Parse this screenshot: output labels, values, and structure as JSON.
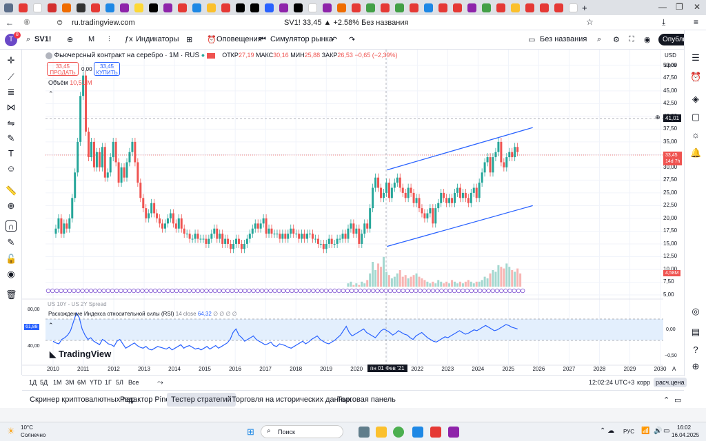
{
  "browser": {
    "url": "ru.tradingview.com",
    "page_title": "SV1! 33,45 ▲ +2.58% Без названия",
    "tab_badge": "8"
  },
  "toolbar": {
    "symbol": "SV1!",
    "interval": "М",
    "indicators": "Индикаторы",
    "alerts": "Оповещения",
    "replay": "Симулятор рынка",
    "layout_name": "Без названия",
    "publish": "Опубликовать",
    "avatar": "T",
    "avatar_badge": "8"
  },
  "legend": {
    "title": "Фьючерсный контракт на серебро · 1М · RUS",
    "ohlc_o_label": "ОТКР",
    "ohlc_o": "27,19",
    "ohlc_h_label": "МАКС",
    "ohlc_h": "30,16",
    "ohlc_l_label": "МИН",
    "ohlc_l": "25,88",
    "ohlc_c_label": "ЗАКР",
    "ohlc_c": "26,53",
    "change": "−0,65 (−2,39%)",
    "sell_price": "33,45",
    "sell_label": "ПРОДАТЬ",
    "spread": "0,00",
    "buy_price": "33,45",
    "buy_label": "КУПИТЬ",
    "volume_label": "Объём",
    "volume_value": "10,51 M",
    "spread_overlay": "US 10Y - US 2Y Spread"
  },
  "rsi": {
    "label": "Расхождение Индекса относительной силы (RSI)",
    "params": "14 close",
    "value": "64,32",
    "dots": "∅ ∅ ∅ ∅",
    "marker": "61,88",
    "left_80": "80,00",
    "left_40": "40,00",
    "right_top": "0,00",
    "right_bot": "−0,50",
    "logo": "TradingView"
  },
  "price_axis": {
    "currency": "USD",
    "unit": "ароз",
    "ticks": [
      "50,00",
      "47,50",
      "45,00",
      "42,50",
      "40,00",
      "37,50",
      "35,00",
      "32,50",
      "30,00",
      "27,50",
      "25,00",
      "22,50",
      "20,00",
      "17,50",
      "15,00",
      "12,50",
      "10,00",
      "7,50",
      "5,00"
    ],
    "crosshair": "41,01",
    "last_price": "33,45",
    "countdown": "14d 7h",
    "volume_badge": "4,58M"
  },
  "time_axis": {
    "years": [
      "2010",
      "2011",
      "2012",
      "2013",
      "2014",
      "2015",
      "2016",
      "2017",
      "2018",
      "2019",
      "2020",
      "2022",
      "2023",
      "2024",
      "2025",
      "2026",
      "2027",
      "2028",
      "2029",
      "2030"
    ],
    "crosshair": "пн 01 Фев '21",
    "auto": "A"
  },
  "bottom": {
    "ranges": [
      "1Д",
      "5Д",
      "1М",
      "3М",
      "6М",
      "YTD",
      "1Г",
      "5Л",
      "Все"
    ],
    "time": "12:02:24 UTC+3",
    "corr": "корр",
    "settle": "расч.цена"
  },
  "panels": [
    "Скринер криптовалютных пар",
    "Редактор Pine",
    "Тестер стратегий",
    "Торговля на исторических данных",
    "Торговая панель"
  ],
  "taskbar": {
    "weather_temp": "10°C",
    "weather_desc": "Солнечно",
    "search": "Поиск",
    "lang": "РУС",
    "time": "16:02",
    "date": "16.04.2025"
  },
  "colors": {
    "up": "#26a69a",
    "down": "#ef5350",
    "channel": "#2962ff",
    "rsi": "#2962ff",
    "rsi_band": "#e3effd"
  },
  "chart_data": {
    "type": "candlestick",
    "title": "Фьючерсный контракт на серебро · 1М · RUS",
    "ylim": [
      5,
      52
    ],
    "price_track": [
      17,
      18,
      20,
      17,
      19,
      18,
      20,
      24,
      29,
      35,
      44,
      48,
      37,
      32,
      35,
      30,
      33,
      30,
      34,
      28,
      29,
      32,
      35,
      31,
      27,
      30,
      28,
      31,
      33,
      35,
      31,
      27,
      24,
      22,
      20,
      21,
      23,
      21,
      20,
      19,
      18,
      19,
      20,
      21,
      19,
      18,
      20,
      18,
      17,
      17,
      16,
      16,
      17,
      16,
      16,
      16,
      15,
      16,
      17,
      18,
      16,
      17,
      15,
      16,
      15,
      14,
      15,
      16,
      15,
      14,
      15,
      16,
      17,
      18,
      19,
      18,
      19,
      20,
      17,
      18,
      17,
      17,
      17,
      16,
      17,
      16,
      17,
      18,
      17,
      17,
      16,
      17,
      16,
      17,
      17,
      16,
      16,
      15,
      15,
      14,
      15,
      16,
      15,
      15,
      16,
      16,
      17,
      16,
      18,
      19,
      17,
      18,
      15,
      17,
      19,
      18,
      22,
      26,
      28,
      26,
      24,
      25,
      27,
      24,
      26,
      27,
      28,
      26,
      25,
      24,
      26,
      25,
      23,
      24,
      22,
      21,
      20,
      21,
      22,
      19,
      22,
      23,
      25,
      24,
      23,
      24,
      23,
      25,
      26,
      24,
      25,
      24,
      23,
      25,
      26,
      24,
      27,
      29,
      31,
      32,
      29,
      32,
      33,
      35,
      31,
      30,
      32,
      33,
      32,
      34,
      33
    ],
    "volume_track": [
      0,
      0,
      0,
      0,
      0,
      0,
      0,
      0,
      0,
      0,
      0,
      0,
      0,
      0,
      0,
      0,
      0,
      0,
      0,
      0,
      0,
      0,
      0,
      0,
      0,
      0,
      0,
      0,
      0,
      0,
      0,
      0,
      0,
      0,
      0,
      0,
      0,
      0,
      0,
      0,
      0,
      0,
      0,
      0,
      0,
      0,
      0,
      0,
      0,
      0,
      0,
      0,
      0,
      0,
      0,
      0,
      0,
      0,
      0,
      0,
      0,
      0,
      0,
      0,
      0,
      0,
      0,
      0,
      0,
      0,
      0,
      0,
      0,
      0,
      0,
      0,
      0,
      0,
      0,
      0,
      0,
      0,
      0,
      0,
      0,
      0,
      0,
      0,
      0,
      0,
      0,
      0,
      0,
      0,
      0,
      0,
      0,
      0,
      0,
      0,
      0,
      0,
      0,
      0,
      0,
      0,
      0,
      0,
      2,
      3,
      1,
      2,
      1,
      3,
      2,
      4,
      8,
      15,
      10,
      14,
      12,
      18,
      9,
      7,
      5,
      6,
      8,
      10,
      6,
      7,
      5,
      6,
      7,
      8,
      6,
      5,
      4,
      3,
      2,
      3,
      2,
      4,
      3,
      2,
      3,
      2,
      4,
      3,
      2,
      3,
      2,
      3,
      4,
      3,
      2,
      3,
      3,
      4,
      6,
      5,
      8,
      10,
      9,
      13,
      12,
      11,
      14,
      12,
      10,
      9,
      11,
      8
    ],
    "rsi_track": [
      48,
      46,
      45,
      50,
      52,
      55,
      60,
      70,
      80,
      75,
      62,
      55,
      50,
      52,
      48,
      46,
      44,
      50,
      48,
      45,
      44,
      42,
      48,
      50,
      45,
      40,
      42,
      44,
      46,
      43,
      41,
      40,
      42,
      39,
      38,
      40,
      42,
      41,
      40,
      39,
      41,
      38,
      40,
      42,
      44,
      40,
      42,
      43,
      41,
      39,
      40,
      38,
      40,
      42,
      39,
      41,
      43,
      40,
      42,
      44,
      46,
      50,
      58,
      62,
      55,
      52,
      48,
      50,
      52,
      54,
      50,
      48,
      46,
      44,
      45,
      47,
      43,
      42,
      45,
      44,
      43,
      41,
      40,
      42,
      44,
      46,
      48,
      45,
      47,
      50,
      52,
      54,
      50,
      48,
      46,
      45,
      47,
      49,
      52,
      55,
      60,
      65,
      58,
      54,
      56,
      58,
      60,
      62,
      58,
      56,
      54,
      52,
      56,
      60,
      62,
      60,
      58,
      55,
      57,
      60,
      58,
      56,
      55,
      52,
      50,
      54,
      56,
      58,
      55,
      52,
      50,
      48,
      47,
      49,
      51,
      53,
      52,
      54,
      56,
      58,
      60,
      58,
      56,
      57,
      59,
      61,
      60,
      62,
      64,
      66,
      64,
      62,
      60,
      61,
      63,
      65,
      67,
      66,
      64,
      63,
      62
    ],
    "channel": {
      "upper": [
        [
          2021.0,
          29.5
        ],
        [
          2025.8,
          37.8
        ]
      ],
      "lower": [
        [
          2021.0,
          14.5
        ],
        [
          2025.8,
          22.5
        ]
      ]
    }
  }
}
